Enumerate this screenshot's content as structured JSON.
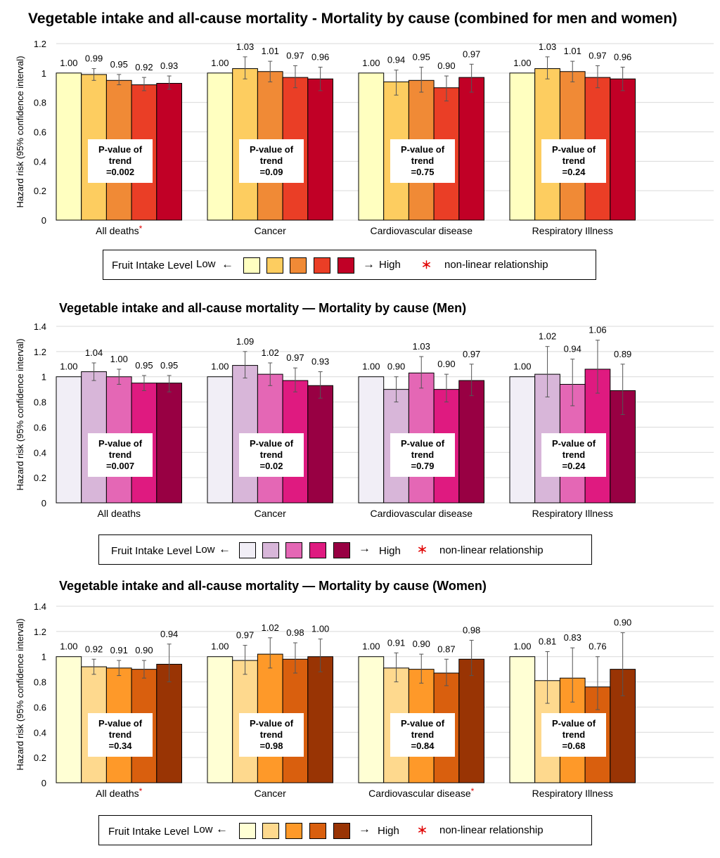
{
  "legend": {
    "label": "Fruit Intake Level",
    "low": "Low",
    "arrow_low": "←",
    "arrow_high": "→",
    "high": "High",
    "star": "＊",
    "star_text": "non-linear relationship"
  },
  "p_label": "P-value of trend",
  "chart_data": [
    {
      "type": "bar",
      "title": "Vegetable intake and all-cause mortality - Mortality by cause (combined for men and women)",
      "ylabel": "Hazard risk (95% confidence interval)",
      "ylim": [
        0,
        1.2
      ],
      "yticks": [
        "0",
        "0.2",
        "0.4",
        "0.6",
        "0.8",
        "1",
        "1.2"
      ],
      "colors": [
        "#ffffc0",
        "#fdcd60",
        "#f08a36",
        "#ea3e26",
        "#c10026"
      ],
      "groups": [
        {
          "label": "All deaths",
          "star": true,
          "p_value": "=0.002",
          "values": [
            1.0,
            0.99,
            0.95,
            0.92,
            0.93
          ],
          "labels": [
            "1.00",
            "0.99",
            "0.95",
            "0.92",
            "0.93"
          ],
          "ci_low": [
            1.0,
            0.95,
            0.92,
            0.88,
            0.89
          ],
          "ci_high": [
            1.0,
            1.03,
            0.99,
            0.97,
            0.98
          ]
        },
        {
          "label": "Cancer",
          "star": false,
          "p_value": "=0.09",
          "values": [
            1.0,
            1.03,
            1.01,
            0.97,
            0.96
          ],
          "labels": [
            "1.00",
            "1.03",
            "1.01",
            "0.97",
            "0.96"
          ],
          "ci_low": [
            1.0,
            0.96,
            0.94,
            0.9,
            0.88
          ],
          "ci_high": [
            1.0,
            1.11,
            1.08,
            1.05,
            1.04
          ]
        },
        {
          "label": "Cardiovascular disease",
          "star": false,
          "p_value": "=0.75",
          "values": [
            1.0,
            0.94,
            0.95,
            0.9,
            0.97
          ],
          "labels": [
            "1.00",
            "0.94",
            "0.95",
            "0.90",
            "0.97"
          ],
          "ci_low": [
            1.0,
            0.85,
            0.87,
            0.81,
            0.87
          ],
          "ci_high": [
            1.0,
            1.02,
            1.04,
            0.98,
            1.06
          ]
        },
        {
          "label": "Respiratory Illness",
          "star": false,
          "p_value": "=0.24",
          "values": [
            1.0,
            1.03,
            1.01,
            0.97,
            0.96
          ],
          "labels": [
            "1.00",
            "1.03",
            "1.01",
            "0.97",
            "0.96"
          ],
          "ci_low": [
            1.0,
            0.96,
            0.94,
            0.9,
            0.88
          ],
          "ci_high": [
            1.0,
            1.11,
            1.08,
            1.05,
            1.04
          ]
        }
      ]
    },
    {
      "type": "bar",
      "title": "Vegetable intake and all-cause mortality ― Mortality by cause (Men)",
      "ylabel": "Hazard risk (95% confidence interval)",
      "ylim": [
        0,
        1.4
      ],
      "yticks": [
        "0",
        "0.2",
        "0.4",
        "0.6",
        "0.8",
        "1",
        "1.2",
        "1.4"
      ],
      "colors": [
        "#f1eef6",
        "#d8b6d9",
        "#e467b5",
        "#df1a80",
        "#980043"
      ],
      "groups": [
        {
          "label": "All deaths",
          "star": false,
          "p_value": "=0.007",
          "values": [
            1.0,
            1.04,
            1.0,
            0.95,
            0.95
          ],
          "labels": [
            "1.00",
            "1.04",
            "1.00",
            "0.95",
            "0.95"
          ],
          "ci_low": [
            1.0,
            0.97,
            0.94,
            0.89,
            0.88
          ],
          "ci_high": [
            1.0,
            1.11,
            1.06,
            1.01,
            1.01
          ]
        },
        {
          "label": "Cancer",
          "star": false,
          "p_value": "=0.02",
          "values": [
            1.0,
            1.09,
            1.02,
            0.97,
            0.93
          ],
          "labels": [
            "1.00",
            "1.09",
            "1.02",
            "0.97",
            "0.93"
          ],
          "ci_low": [
            1.0,
            0.99,
            0.93,
            0.88,
            0.83
          ],
          "ci_high": [
            1.0,
            1.2,
            1.11,
            1.07,
            1.04
          ]
        },
        {
          "label": "Cardiovascular disease",
          "star": false,
          "p_value": "=0.79",
          "values": [
            1.0,
            0.9,
            1.03,
            0.9,
            0.97
          ],
          "labels": [
            "1.00",
            "0.90",
            "1.03",
            "0.90",
            "0.97"
          ],
          "ci_low": [
            1.0,
            0.8,
            0.91,
            0.8,
            0.85
          ],
          "ci_high": [
            1.0,
            1.0,
            1.16,
            1.02,
            1.1
          ]
        },
        {
          "label": "Respiratory Illness",
          "star": false,
          "p_value": "=0.24",
          "values": [
            1.0,
            1.02,
            0.94,
            1.06,
            0.89
          ],
          "labels": [
            "1.00",
            "1.02",
            "0.94",
            "1.06",
            "0.89"
          ],
          "ci_low": [
            1.0,
            0.84,
            0.77,
            0.87,
            0.7
          ],
          "ci_high": [
            1.0,
            1.24,
            1.14,
            1.29,
            1.1
          ]
        }
      ]
    },
    {
      "type": "bar",
      "title": "Vegetable intake and all-cause mortality ― Mortality by cause (Women)",
      "ylabel": "Hazard risk (95% confidence interval)",
      "ylim": [
        0,
        1.4
      ],
      "yticks": [
        "0",
        "0.2",
        "0.4",
        "0.6",
        "0.8",
        "1",
        "1.2",
        "1.4"
      ],
      "colors": [
        "#ffffd4",
        "#fed98e",
        "#fe9929",
        "#d95f0e",
        "#993404"
      ],
      "groups": [
        {
          "label": "All deaths",
          "star": true,
          "p_value": "=0.34",
          "values": [
            1.0,
            0.92,
            0.91,
            0.9,
            0.94
          ],
          "labels": [
            "1.00",
            "0.92",
            "0.91",
            "0.90",
            "0.94"
          ],
          "ci_low": [
            1.0,
            0.86,
            0.85,
            0.83,
            0.8
          ],
          "ci_high": [
            1.0,
            0.98,
            0.97,
            0.97,
            1.1
          ]
        },
        {
          "label": "Cancer",
          "star": false,
          "p_value": "=0.98",
          "values": [
            1.0,
            0.97,
            1.02,
            0.98,
            1.0
          ],
          "labels": [
            "1.00",
            "0.97",
            "1.02",
            "0.98",
            "1.00"
          ],
          "ci_low": [
            1.0,
            0.86,
            0.91,
            0.87,
            0.88
          ],
          "ci_high": [
            1.0,
            1.09,
            1.15,
            1.11,
            1.14
          ]
        },
        {
          "label": "Cardiovascular disease",
          "star": true,
          "p_value": "=0.84",
          "values": [
            1.0,
            0.91,
            0.9,
            0.87,
            0.98
          ],
          "labels": [
            "1.00",
            "0.91",
            "0.90",
            "0.87",
            "0.98"
          ],
          "ci_low": [
            1.0,
            0.8,
            0.79,
            0.77,
            0.85
          ],
          "ci_high": [
            1.0,
            1.03,
            1.02,
            0.98,
            1.13
          ]
        },
        {
          "label": "Respiratory Illness",
          "star": false,
          "p_value": "=0.68",
          "values": [
            1.0,
            0.81,
            0.83,
            0.76,
            0.9
          ],
          "labels": [
            "1.00",
            "0.81",
            "0.83",
            "0.76",
            "0.90"
          ],
          "ci_low": [
            1.0,
            0.63,
            0.64,
            0.58,
            0.69
          ],
          "ci_high": [
            1.0,
            1.04,
            1.07,
            1.0,
            1.19
          ]
        }
      ]
    }
  ]
}
